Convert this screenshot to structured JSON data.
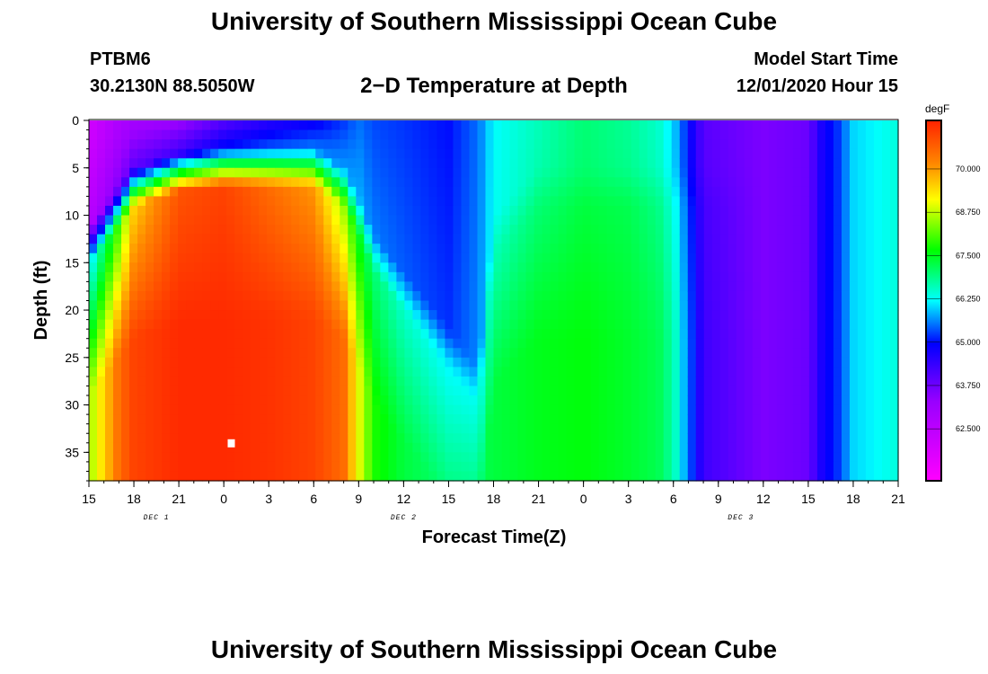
{
  "header": {
    "title": "University of Southern Mississippi Ocean Cube",
    "station_id": "PTBM6",
    "coordinates": "30.2130N 88.5050W",
    "subtitle": "2−D Temperature at Depth",
    "model_start_label": "Model Start Time",
    "model_start_value": "12/01/2020 Hour 15"
  },
  "footer": {
    "title": "University of Southern Mississippi Ocean Cube"
  },
  "chart_data": {
    "type": "heatmap",
    "xlabel": "Forecast Time(Z)",
    "ylabel": "Depth (ft)",
    "x_range_hours": [
      15,
      69
    ],
    "ylim": [
      0,
      38
    ],
    "x_tick_labels": [
      "15",
      "18",
      "21",
      "0",
      "3",
      "6",
      "9",
      "12",
      "15",
      "18",
      "21",
      "0",
      "3",
      "6",
      "9",
      "12",
      "15",
      "18",
      "21"
    ],
    "y_ticks": [
      0,
      5,
      10,
      15,
      20,
      25,
      30,
      35
    ],
    "day_labels": [
      {
        "label": "DEC 1",
        "hour": 19.5
      },
      {
        "label": "DEC 2",
        "hour": 36
      },
      {
        "label": "DEC 3",
        "hour": 58.5
      }
    ],
    "colorbar": {
      "unit": "degF",
      "min": 61.0,
      "max": 71.4,
      "tick_values": [
        62.5,
        63.75,
        65.0,
        66.25,
        67.5,
        68.75,
        70.0
      ],
      "tick_labels": [
        "62.500",
        "63.750",
        "65.000",
        "66.250",
        "67.500",
        "68.750",
        "70.000"
      ]
    },
    "white_marker": {
      "hour": 24.5,
      "depth_ft": 34
    },
    "surface_layer": [
      {
        "hour": 15,
        "top_temp": 62.0,
        "top_depth": 11,
        "mid_temp": 66.0,
        "deep_temp": 68.5
      },
      {
        "hour": 16,
        "top_temp": 62.4,
        "top_depth": 9,
        "mid_temp": 67.0,
        "deep_temp": 69.5
      },
      {
        "hour": 17,
        "top_temp": 62.8,
        "top_depth": 7,
        "mid_temp": 68.0,
        "deep_temp": 70.5
      },
      {
        "hour": 18,
        "top_temp": 63.0,
        "top_depth": 5,
        "mid_temp": 69.5,
        "deep_temp": 71.0
      },
      {
        "hour": 21,
        "top_temp": 63.2,
        "top_depth": 3.5,
        "mid_temp": 70.8,
        "deep_temp": 71.3
      },
      {
        "hour": 24,
        "top_temp": 64.0,
        "top_depth": 3,
        "mid_temp": 71.0,
        "deep_temp": 71.3
      },
      {
        "hour": 27,
        "top_temp": 64.5,
        "top_depth": 3,
        "mid_temp": 70.5,
        "deep_temp": 71.2
      },
      {
        "hour": 30,
        "top_temp": 64.8,
        "top_depth": 3,
        "mid_temp": 70.0,
        "deep_temp": 71.0
      },
      {
        "hour": 32,
        "top_temp": 65.2,
        "top_depth": 5,
        "mid_temp": 68.5,
        "deep_temp": 70.5
      },
      {
        "hour": 33,
        "top_temp": 65.5,
        "top_depth": 8,
        "mid_temp": 67.5,
        "deep_temp": 69.0
      },
      {
        "hour": 34,
        "top_temp": 65.3,
        "top_depth": 12,
        "mid_temp": 67.0,
        "deep_temp": 67.8
      },
      {
        "hour": 36,
        "top_temp": 65.2,
        "top_depth": 16,
        "mid_temp": 66.5,
        "deep_temp": 67.3
      },
      {
        "hour": 39,
        "top_temp": 65.0,
        "top_depth": 22,
        "mid_temp": 66.2,
        "deep_temp": 67.0
      },
      {
        "hour": 41,
        "top_temp": 65.5,
        "top_depth": 26,
        "mid_temp": 66.3,
        "deep_temp": 67.2
      },
      {
        "hour": 42,
        "top_temp": 66.2,
        "top_depth": 10,
        "mid_temp": 66.6,
        "deep_temp": 67.3
      },
      {
        "hour": 45,
        "top_temp": 66.6,
        "top_depth": 5,
        "mid_temp": 67.0,
        "deep_temp": 67.5
      },
      {
        "hour": 48,
        "top_temp": 67.0,
        "top_depth": 5,
        "mid_temp": 67.3,
        "deep_temp": 67.6
      },
      {
        "hour": 51,
        "top_temp": 66.8,
        "top_depth": 5,
        "mid_temp": 67.2,
        "deep_temp": 67.4
      },
      {
        "hour": 53,
        "top_temp": 66.5,
        "top_depth": 5,
        "mid_temp": 66.9,
        "deep_temp": 67.2
      },
      {
        "hour": 54,
        "top_temp": 66.0,
        "top_depth": 5,
        "mid_temp": 66.4,
        "deep_temp": 66.7
      },
      {
        "hour": 55,
        "top_temp": 65.0,
        "top_depth": 5,
        "mid_temp": 65.3,
        "deep_temp": 65.5
      },
      {
        "hour": 56,
        "top_temp": 64.0,
        "top_depth": 5,
        "mid_temp": 64.2,
        "deep_temp": 64.3
      },
      {
        "hour": 60,
        "top_temp": 63.6,
        "top_depth": 5,
        "mid_temp": 63.6,
        "deep_temp": 63.6
      },
      {
        "hour": 63,
        "top_temp": 63.8,
        "top_depth": 5,
        "mid_temp": 63.8,
        "deep_temp": 63.8
      },
      {
        "hour": 64,
        "top_temp": 64.8,
        "top_depth": 5,
        "mid_temp": 64.8,
        "deep_temp": 64.8
      },
      {
        "hour": 65,
        "top_temp": 65.2,
        "top_depth": 5,
        "mid_temp": 65.2,
        "deep_temp": 65.2
      },
      {
        "hour": 66,
        "top_temp": 66.0,
        "top_depth": 5,
        "mid_temp": 66.0,
        "deep_temp": 66.0
      },
      {
        "hour": 69,
        "top_temp": 66.4,
        "top_depth": 5,
        "mid_temp": 66.4,
        "deep_temp": 66.4
      }
    ]
  }
}
